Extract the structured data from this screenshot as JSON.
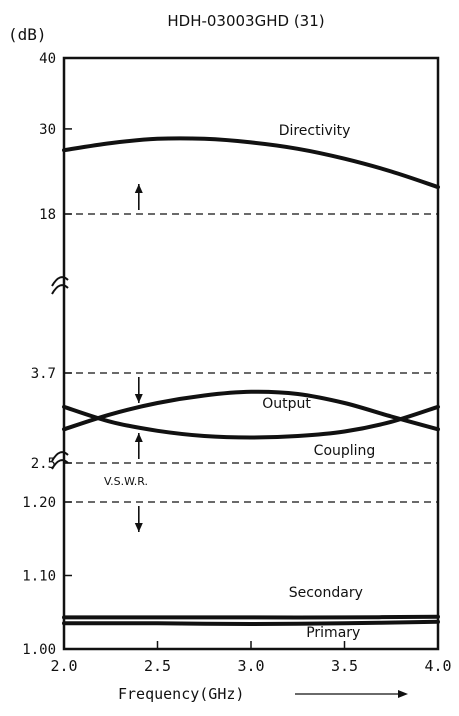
{
  "title": "HDH-03003GHD (31)",
  "yunit": "(dB)",
  "xlabel": "Frequency(GHz)",
  "chart_data": {
    "type": "line",
    "title": "HDH-03003GHD (31)",
    "xlabel": "Frequency(GHz)",
    "xlim": [
      2.0,
      4.0
    ],
    "x_ticks": [
      "2.0",
      "2.5",
      "3.0",
      "3.5",
      "4.0"
    ],
    "broken_y_axis": true,
    "panels": [
      {
        "name": "directivity-panel",
        "unit": "dB",
        "ylim": [
          18,
          40
        ],
        "y_ticks": [
          "40",
          "30",
          "18"
        ],
        "limit_line": {
          "y": 18,
          "direction": "above"
        },
        "series": [
          {
            "name": "Directivity",
            "x": [
              2.0,
              2.25,
              2.5,
              2.75,
              3.0,
              3.25,
              3.5,
              3.75,
              4.0
            ],
            "y": [
              27.0,
              28.0,
              28.6,
              28.6,
              28.1,
              27.2,
              25.8,
              24.0,
              21.8
            ]
          }
        ]
      },
      {
        "name": "coupling-output-panel",
        "unit": "dB",
        "ylim": [
          2.0,
          3.85
        ],
        "y_ticks": [
          "3.7",
          "2.5"
        ],
        "limit_lines": [
          {
            "y": 3.7,
            "direction": "below"
          },
          {
            "y": 2.5,
            "direction": "above"
          }
        ],
        "series": [
          {
            "name": "Output",
            "x": [
              2.0,
              2.25,
              2.5,
              2.75,
              3.0,
              3.25,
              3.5,
              3.75,
              4.0
            ],
            "y": [
              2.95,
              3.15,
              3.3,
              3.4,
              3.45,
              3.42,
              3.3,
              3.12,
              2.95
            ]
          },
          {
            "name": "Coupling",
            "x": [
              2.0,
              2.25,
              2.5,
              2.75,
              3.0,
              3.25,
              3.5,
              3.75,
              4.0
            ],
            "y": [
              3.25,
              3.05,
              2.93,
              2.86,
              2.84,
              2.86,
              2.92,
              3.05,
              3.25
            ]
          }
        ]
      },
      {
        "name": "vswr-panel",
        "label": "V.S.W.R.",
        "ylim": [
          1.0,
          1.2
        ],
        "y_ticks": [
          "1.20",
          "1.10",
          "1.00"
        ],
        "limit_line": {
          "y": 1.2,
          "direction": "below"
        },
        "series": [
          {
            "name": "Secondary",
            "x": [
              2.0,
              2.5,
              3.0,
              3.5,
              4.0
            ],
            "y": [
              1.043,
              1.043,
              1.043,
              1.043,
              1.044
            ]
          },
          {
            "name": "Primary",
            "x": [
              2.0,
              2.5,
              3.0,
              3.5,
              4.0
            ],
            "y": [
              1.035,
              1.035,
              1.034,
              1.035,
              1.037
            ]
          }
        ]
      }
    ]
  }
}
